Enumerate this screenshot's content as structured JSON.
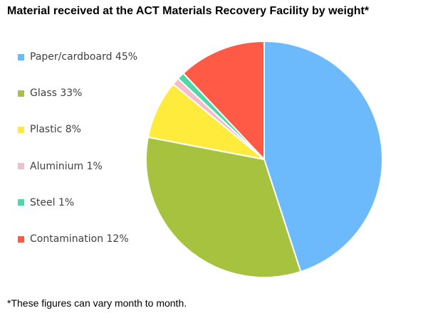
{
  "chart_data": {
    "type": "pie",
    "title": "Material received at the ACT Materials Recovery Facility by weight*",
    "legend_position": "left",
    "start_angle_deg": 0,
    "direction": "clockwise",
    "slices": [
      {
        "name": "Paper/cardboard",
        "value": 45,
        "label": "Paper/cardboard 45%",
        "color": "#6cb9fc"
      },
      {
        "name": "Glass",
        "value": 33,
        "label": "Glass 33%",
        "color": "#a6c23e"
      },
      {
        "name": "Plastic",
        "value": 8,
        "label": "Plastic 8%",
        "color": "#ffeb3b"
      },
      {
        "name": "Aluminium",
        "value": 1,
        "label": "Aluminium 1%",
        "color": "#f7bccb"
      },
      {
        "name": "Steel",
        "value": 1,
        "label": "Steel 1%",
        "color": "#4dd9a6"
      },
      {
        "name": "Contamination",
        "value": 12,
        "label": "Contamination 12%",
        "color": "#ff5a46"
      }
    ]
  },
  "footnote": "*These figures can vary month to month."
}
